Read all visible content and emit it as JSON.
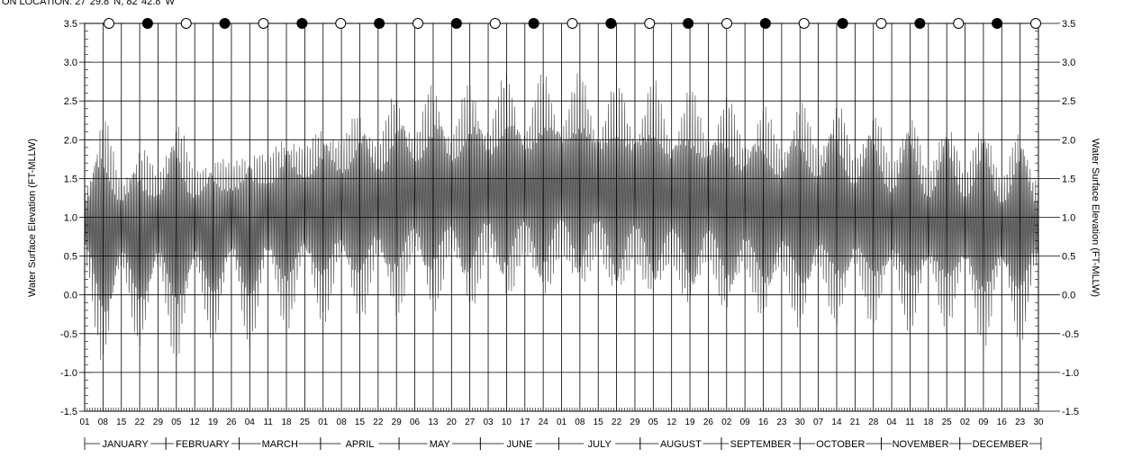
{
  "header_text": "ON LOCATION:  27°29.8' N, 82°42.8' W",
  "chart_data": {
    "type": "line",
    "title": "",
    "ylabel_left": "Water Surface Elevation (FT-MLLW)",
    "ylabel_right": "Water Surface Elevation (FT-MLLW)",
    "ylim": [
      -1.5,
      3.5
    ],
    "y_ticks": [
      "-1.5",
      "-1.0",
      "-0.5",
      "0.0",
      "0.5",
      "1.0",
      "1.5",
      "2.0",
      "2.5",
      "3.0",
      "3.5"
    ],
    "x_day_labels": [
      "01",
      "08",
      "15",
      "22",
      "29",
      "05",
      "12",
      "19",
      "26",
      "04",
      "11",
      "18",
      "25",
      "01",
      "08",
      "15",
      "22",
      "29",
      "06",
      "13",
      "20",
      "27",
      "03",
      "10",
      "17",
      "24",
      "01",
      "08",
      "15",
      "22",
      "29",
      "05",
      "12",
      "19",
      "26",
      "02",
      "09",
      "16",
      "23",
      "30",
      "07",
      "14",
      "21",
      "28",
      "04",
      "11",
      "18",
      "25",
      "02",
      "09",
      "16",
      "23",
      "30"
    ],
    "months": [
      "JANUARY",
      "FEBRUARY",
      "MARCH",
      "APRIL",
      "MAY",
      "JUNE",
      "JULY",
      "AUGUST",
      "SEPTEMBER",
      "OCTOBER",
      "NOVEMBER",
      "DECEMBER"
    ],
    "moon_phases": [
      "full",
      "new",
      "full",
      "new",
      "full",
      "new",
      "full",
      "new",
      "full",
      "new",
      "full",
      "new",
      "full",
      "new",
      "full",
      "new",
      "full",
      "new",
      "full",
      "new",
      "full",
      "new",
      "full",
      "new",
      "full"
    ],
    "series": [
      {
        "envelope_points_day": [
          0,
          7,
          14,
          21,
          28,
          35,
          42,
          49,
          56,
          63,
          70,
          77,
          84,
          91,
          98,
          105,
          112,
          119,
          126,
          133,
          140,
          147,
          154,
          161,
          168,
          175,
          182,
          189,
          196,
          203,
          210,
          217,
          224,
          231,
          238,
          245,
          252,
          259,
          266,
          273,
          280,
          287,
          294,
          301,
          308,
          315,
          322,
          329,
          336,
          343,
          350,
          357,
          363
        ],
        "high_ft": [
          1.4,
          2.4,
          1.5,
          2.0,
          1.6,
          2.4,
          1.6,
          1.9,
          1.7,
          2.0,
          1.8,
          2.2,
          1.9,
          2.3,
          2.0,
          2.5,
          2.0,
          2.7,
          2.1,
          2.8,
          2.1,
          2.8,
          2.2,
          2.9,
          2.2,
          2.9,
          2.3,
          2.9,
          2.2,
          2.8,
          2.2,
          2.8,
          2.1,
          2.7,
          2.1,
          2.6,
          2.0,
          2.5,
          1.9,
          2.6,
          1.9,
          2.6,
          1.8,
          2.5,
          1.7,
          2.5,
          1.6,
          2.4,
          1.6,
          2.4,
          1.5,
          2.3,
          1.5
        ],
        "low_ft": [
          0.4,
          -0.95,
          0.3,
          -0.7,
          0.3,
          -0.9,
          0.3,
          -0.6,
          0.4,
          -0.7,
          0.4,
          -0.5,
          0.4,
          -0.4,
          0.4,
          -0.4,
          0.4,
          -0.35,
          0.5,
          -0.3,
          0.5,
          -0.3,
          0.5,
          -0.2,
          0.5,
          -0.2,
          0.5,
          -0.1,
          0.5,
          -0.2,
          0.4,
          -0.2,
          0.4,
          -0.3,
          0.4,
          -0.35,
          0.3,
          -0.4,
          0.3,
          -0.5,
          0.3,
          -0.45,
          0.3,
          -0.45,
          0.3,
          -0.5,
          0.3,
          -0.5,
          0.3,
          -0.75,
          0.3,
          -0.65,
          0.3
        ]
      }
    ],
    "colors": {
      "trace": "#555555",
      "grid": "#000000",
      "new_moon": "#000000",
      "full_moon": "#ffffff"
    }
  }
}
